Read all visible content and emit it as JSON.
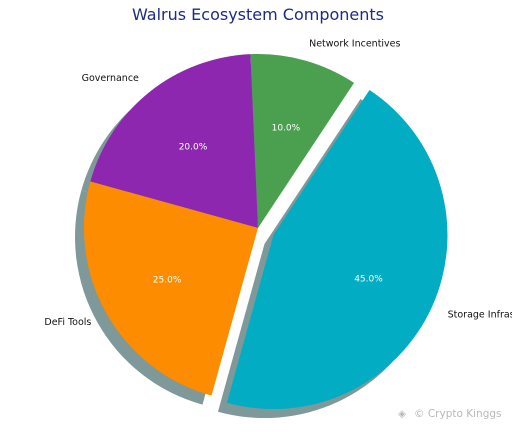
{
  "chart_data": {
    "type": "pie",
    "title": "Walrus Ecosystem Components",
    "categories": [
      "Network Incentives",
      "Governance",
      "DeFi Tools",
      "Storage Infrastructure"
    ],
    "values": [
      10.0,
      20.0,
      25.0,
      45.0
    ],
    "value_labels": [
      "10.0%",
      "20.0%",
      "25.0%",
      "45.0%"
    ],
    "colors": [
      "#4ba04f",
      "#8e27b0",
      "#fd8c00",
      "#02acc2"
    ],
    "shadow_color": "#7f9899",
    "explode": "Storage Infrastructure",
    "shadow": true,
    "legend": "none"
  },
  "watermark": "© Crypto Kinggs"
}
